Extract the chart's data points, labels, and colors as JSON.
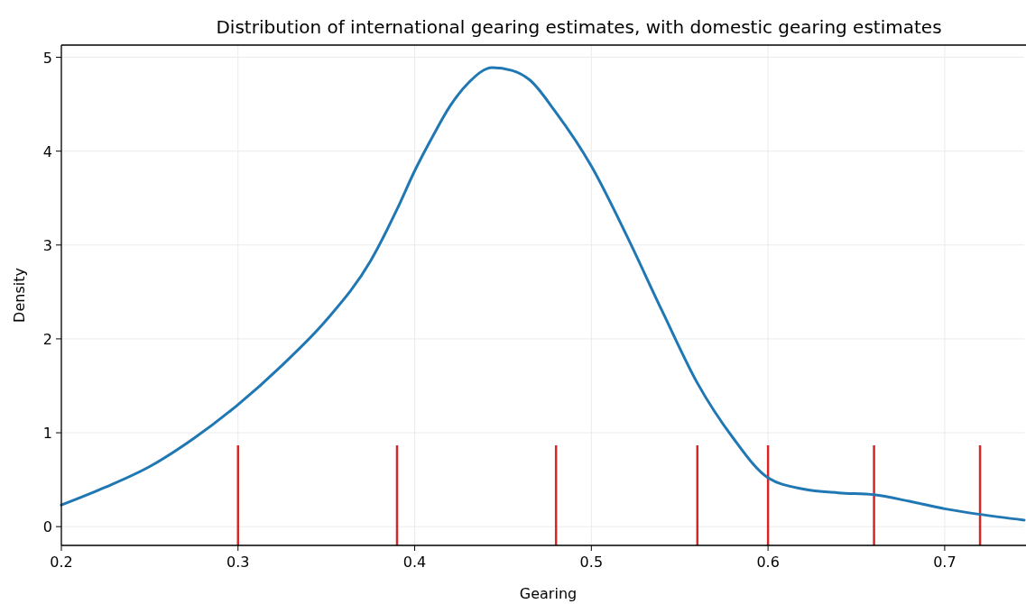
{
  "chart_data": {
    "type": "line",
    "title": "Distribution of international gearing estimates, with domestic gearing estimates",
    "xlabel": "Gearing",
    "ylabel": "Density",
    "series": [
      {
        "color": "#1f77b4",
        "x": [
          0.2,
          0.225,
          0.25,
          0.275,
          0.3,
          0.325,
          0.35,
          0.375,
          0.39,
          0.4,
          0.41,
          0.42,
          0.43,
          0.444,
          0.455,
          0.465,
          0.48,
          0.5,
          0.52,
          0.54,
          0.56,
          0.58,
          0.6,
          0.62,
          0.64,
          0.66,
          0.68,
          0.7,
          0.72,
          0.745
        ],
        "values": [
          0.23,
          0.42,
          0.64,
          0.94,
          1.3,
          1.72,
          2.2,
          2.83,
          3.38,
          3.79,
          4.15,
          4.48,
          4.72,
          4.89,
          4.86,
          4.76,
          4.41,
          3.84,
          3.1,
          2.3,
          1.53,
          0.95,
          0.52,
          0.4,
          0.36,
          0.34,
          0.27,
          0.19,
          0.13,
          0.07
        ]
      }
    ],
    "ref_lines": [
      {
        "axis": "x",
        "value": 0.3,
        "color": "#d62728"
      },
      {
        "axis": "x",
        "value": 0.39,
        "color": "#d62728"
      },
      {
        "axis": "x",
        "value": 0.48,
        "color": "#d62728"
      },
      {
        "axis": "x",
        "value": 0.56,
        "color": "#d62728"
      },
      {
        "axis": "x",
        "value": 0.6,
        "color": "#d62728"
      },
      {
        "axis": "x",
        "value": 0.66,
        "color": "#d62728"
      },
      {
        "axis": "x",
        "value": 0.72,
        "color": "#d62728"
      }
    ],
    "xlim": [
      0.2,
      0.745
    ],
    "xticks": [
      0.2,
      0.3,
      0.4,
      0.5,
      0.6,
      0.7
    ],
    "ylim": [
      -0.2,
      5.13
    ],
    "yticks": [
      0,
      1,
      2,
      3,
      4,
      5
    ],
    "grid": true,
    "line_style": "solid",
    "marker": "none"
  }
}
